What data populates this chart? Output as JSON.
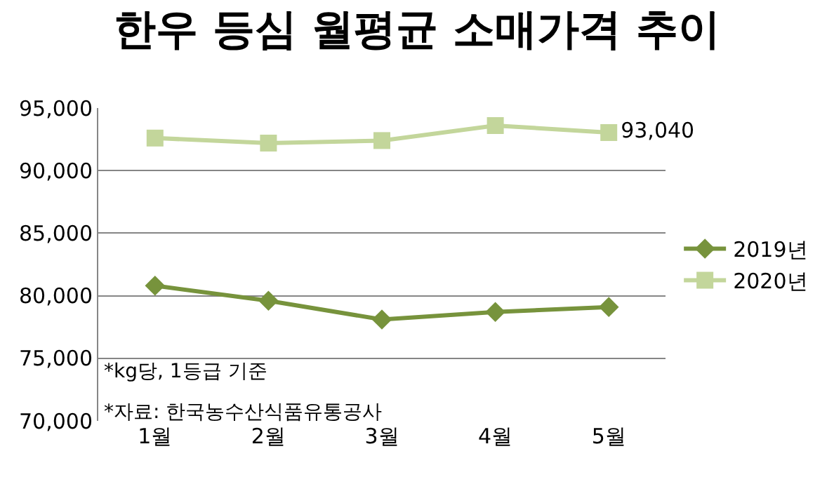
{
  "chart_data": {
    "type": "line",
    "title": "한우 등심 월평균 소매가격 추이",
    "categories": [
      "1월",
      "2월",
      "3월",
      "4월",
      "5월"
    ],
    "series": [
      {
        "name": "2019년",
        "color": "#77933c",
        "marker": "diamond",
        "values": [
          80800,
          79600,
          78100,
          78700,
          79100
        ]
      },
      {
        "name": "2020년",
        "color": "#c3d69b",
        "marker": "square",
        "values": [
          92600,
          92200,
          92400,
          93600,
          93040
        ],
        "value_labels": [
          null,
          null,
          null,
          null,
          "93,040"
        ]
      }
    ],
    "ylim": [
      70000,
      95000
    ],
    "yticks": [
      {
        "value": 70000,
        "label": "70,000"
      },
      {
        "value": 75000,
        "label": "75,000"
      },
      {
        "value": 80000,
        "label": "80,000"
      },
      {
        "value": 85000,
        "label": "85,000"
      },
      {
        "value": 90000,
        "label": "90,000"
      },
      {
        "value": 95000,
        "label": "95,000"
      }
    ],
    "grid": "y",
    "legend": "right",
    "line_style": "solid",
    "annotations": [
      "*kg당, 1등급 기준",
      "*자료: 한국농수산식품유통공사"
    ]
  }
}
